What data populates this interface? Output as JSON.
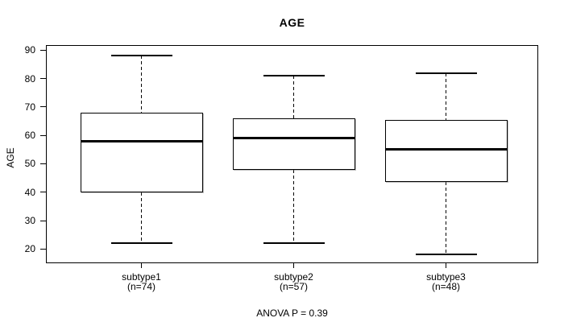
{
  "title": "AGE",
  "footnote": "ANOVA P = 0.39",
  "colors": {
    "line": "#000000",
    "background": "#ffffff"
  },
  "chart_data": {
    "type": "boxplot",
    "title": "AGE",
    "ylabel": "AGE",
    "xlabel": "",
    "grid": false,
    "legend": "none",
    "ylim": [
      15,
      91.8
    ],
    "yticks": [
      20,
      30,
      40,
      50,
      60,
      70,
      80,
      90
    ],
    "footnote": "ANOVA P = 0.39",
    "whisker_style": "dashed",
    "groups": [
      {
        "label": "subtype1",
        "n_label": "(n=74)",
        "n": 74,
        "whisker_low": 22,
        "q1": 40,
        "median": 58,
        "q3": 68,
        "whisker_high": 88
      },
      {
        "label": "subtype2",
        "n_label": "(n=57)",
        "n": 57,
        "whisker_low": 22,
        "q1": 48,
        "median": 59,
        "q3": 66,
        "whisker_high": 81
      },
      {
        "label": "subtype3",
        "n_label": "(n=48)",
        "n": 48,
        "whisker_low": 18,
        "q1": 43.5,
        "median": 55,
        "q3": 65.5,
        "whisker_high": 82
      }
    ]
  }
}
